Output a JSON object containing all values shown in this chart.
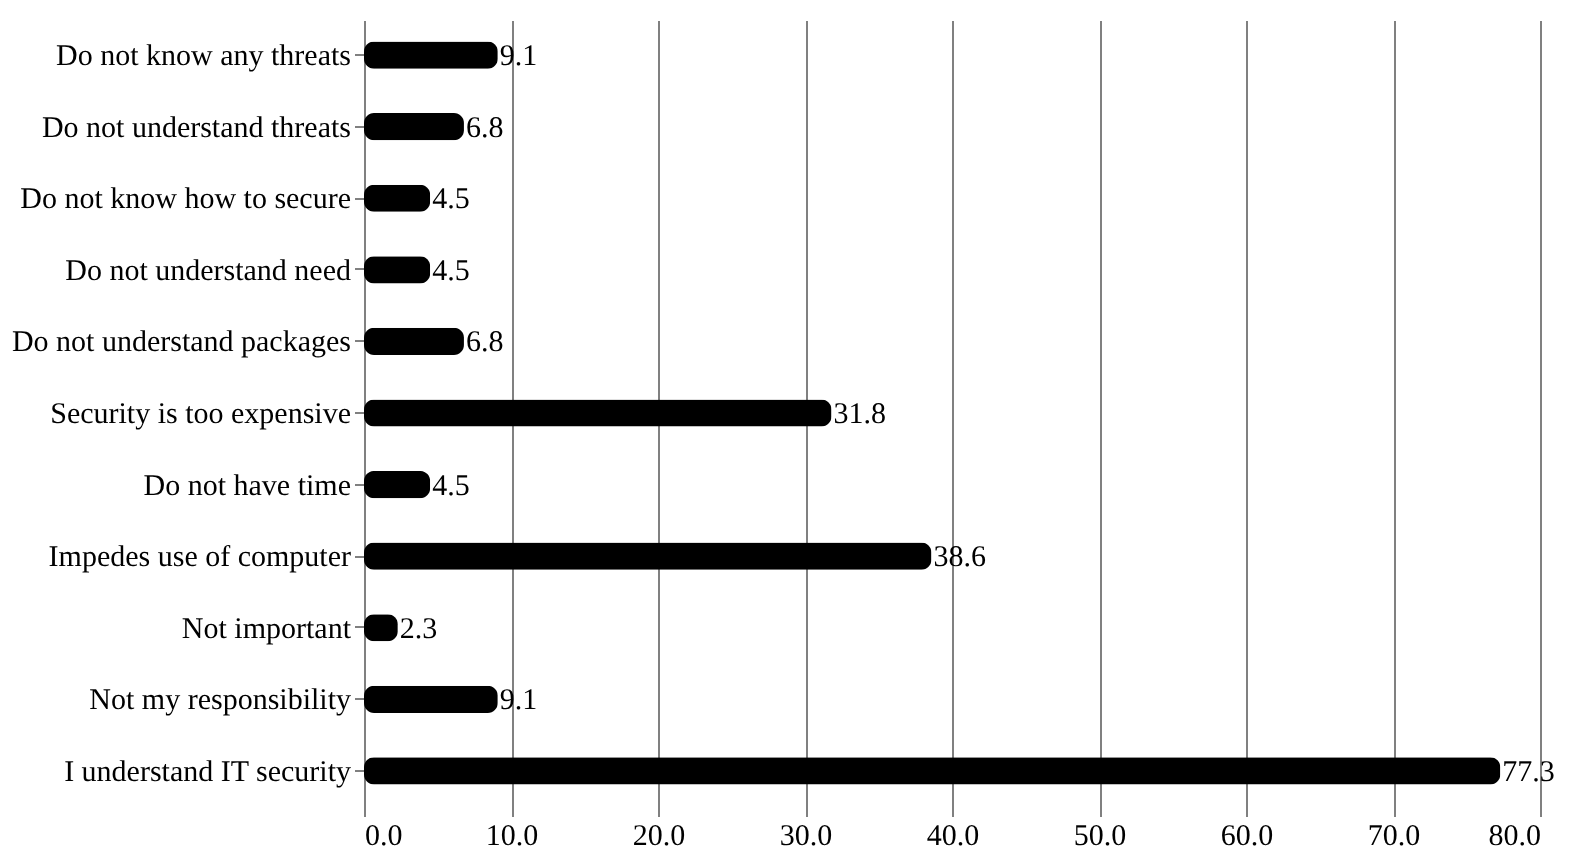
{
  "chart_data": {
    "type": "bar",
    "orientation": "horizontal",
    "categories": [
      "Do not know any threats",
      "Do not understand threats",
      "Do not know how to secure",
      "Do not understand need",
      "Do not understand packages",
      "Security is too expensive",
      "Do not have time",
      "Impedes use of computer",
      "Not important",
      "Not my responsibility",
      "I understand IT security"
    ],
    "values": [
      9.1,
      6.8,
      4.5,
      4.5,
      6.8,
      31.8,
      4.5,
      38.6,
      2.3,
      9.1,
      77.3
    ],
    "color": "#000000",
    "xlim": [
      0,
      80
    ],
    "xticks": [
      {
        "value": 0,
        "label": "0.0"
      },
      {
        "value": 10,
        "label": "10.0"
      },
      {
        "value": 20,
        "label": "20.0"
      },
      {
        "value": 30,
        "label": "30.0"
      },
      {
        "value": 40,
        "label": "40.0"
      },
      {
        "value": 50,
        "label": "50.0"
      },
      {
        "value": 60,
        "label": "60.0"
      },
      {
        "value": 70,
        "label": "70.0"
      },
      {
        "value": 80,
        "label": "80.0"
      }
    ],
    "grid": "x",
    "data_labels": true
  }
}
